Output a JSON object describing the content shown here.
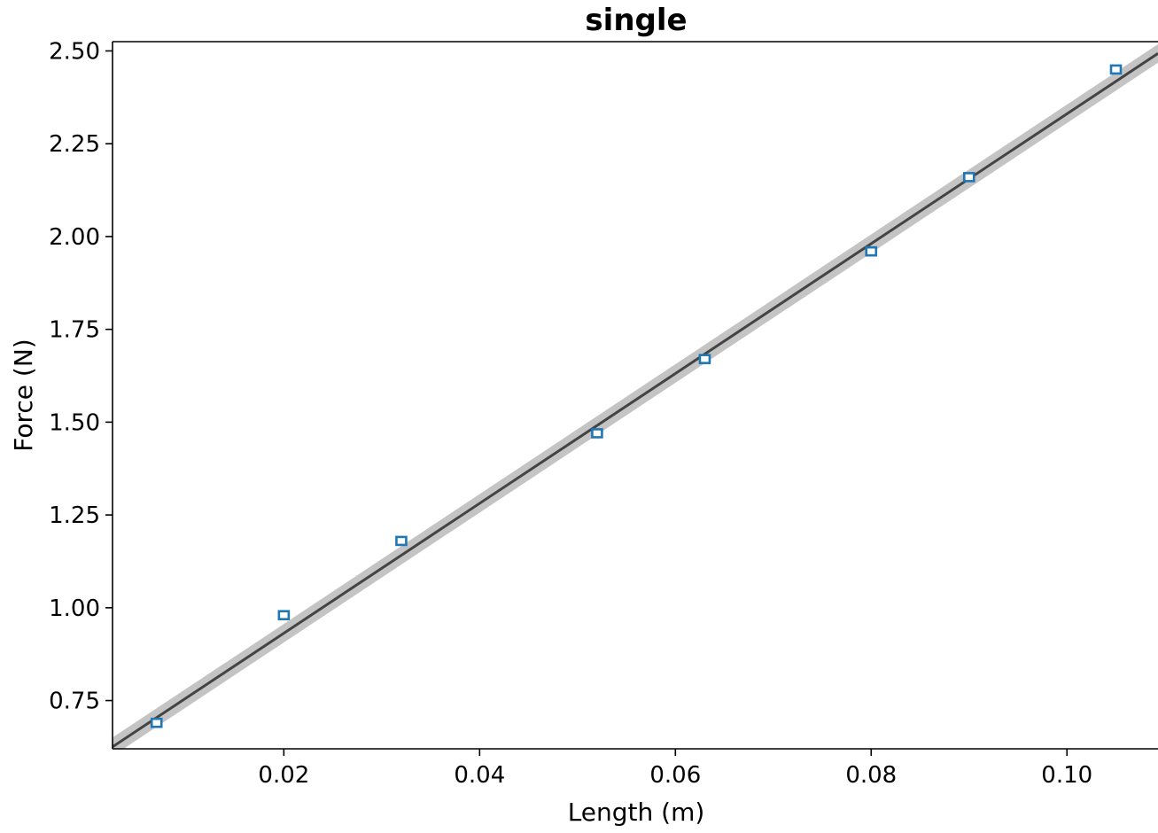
{
  "chart_data": {
    "type": "scatter",
    "title": "single",
    "xlabel": "Length (m)",
    "ylabel": "Force (N)",
    "xlim": [
      0.0025,
      0.1093
    ],
    "ylim": [
      0.62,
      2.525
    ],
    "x_ticks": [
      "0.02",
      "0.04",
      "0.06",
      "0.08",
      "0.10"
    ],
    "y_ticks": [
      "0.75",
      "1.00",
      "1.25",
      "1.50",
      "1.75",
      "2.00",
      "2.25",
      "2.50"
    ],
    "grid": false,
    "series": [
      {
        "marker": "open-square",
        "color": "#1f77b4",
        "x": [
          0.007,
          0.02,
          0.032,
          0.052,
          0.063,
          0.08,
          0.09,
          0.105
        ],
        "y": [
          0.69,
          0.98,
          1.18,
          1.47,
          1.67,
          1.96,
          2.16,
          2.45
        ]
      }
    ],
    "fit": {
      "type": "linear",
      "color": "#444444",
      "band_color": "#b0b0b0",
      "slope": 17.49,
      "intercept": 0.5816,
      "band_halfwidth": 0.025
    }
  }
}
